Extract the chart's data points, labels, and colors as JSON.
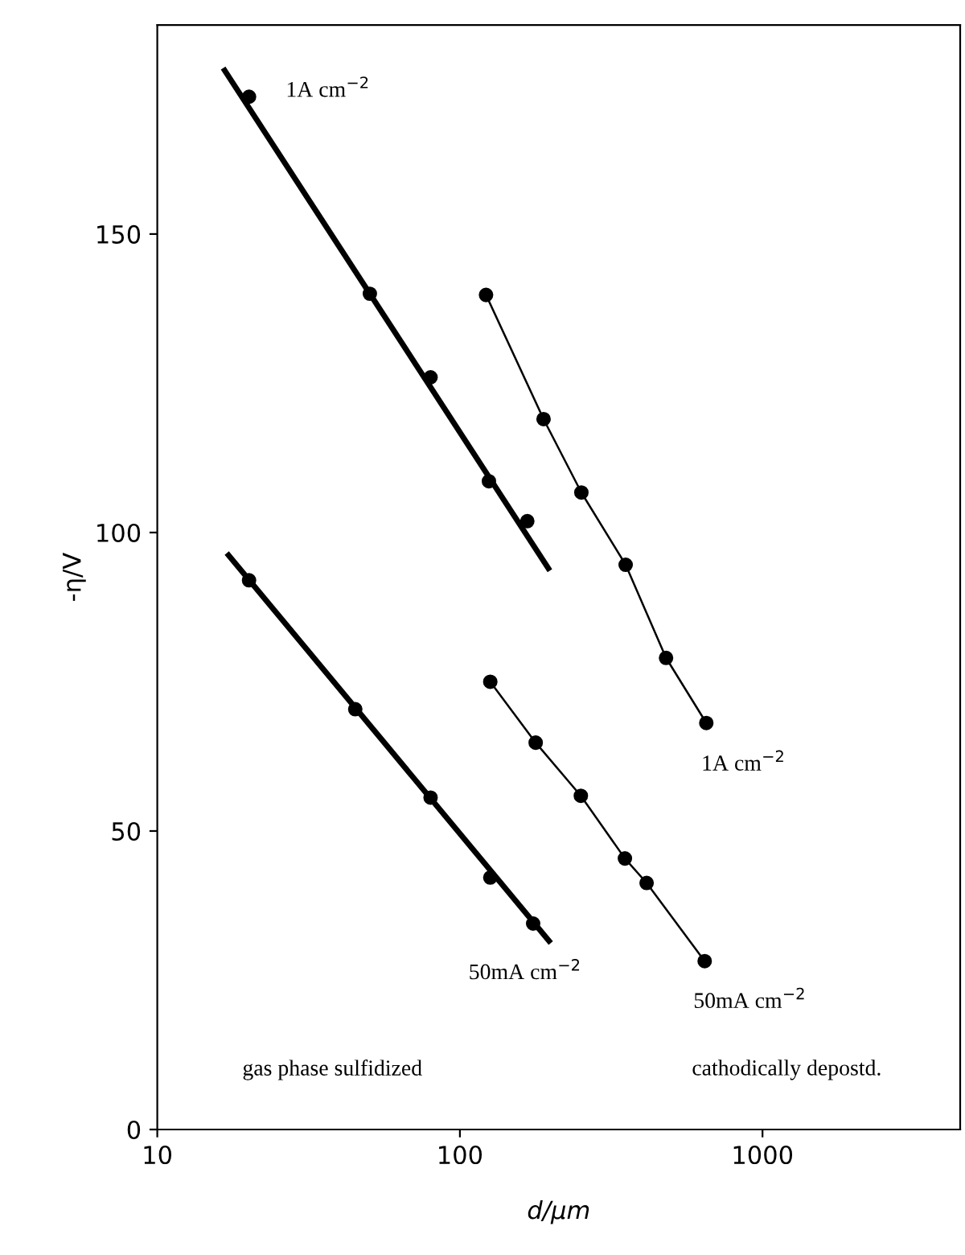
{
  "chart_data": {
    "type": "scatter",
    "xlabel": "d/μm",
    "ylabel": "-η/V",
    "log": "x",
    "xlim": [
      10,
      4500
    ],
    "xticks": [
      10,
      100,
      1000
    ],
    "ylim": [
      0,
      185
    ],
    "yticks": [
      0,
      50,
      100,
      150
    ],
    "grid": false,
    "series": [
      {
        "color": "#000000",
        "marker": "circle",
        "x": [
          20.1,
          50.4,
          80,
          124.7,
          167
        ],
        "values": [
          173,
          140,
          126,
          108.6,
          101.9
        ]
      },
      {
        "type": "line",
        "color": "#000000",
        "marker": "none",
        "x": [
          16.7,
          196
        ],
        "values": [
          177.4,
          94
        ]
      },
      {
        "type": "line",
        "color": "#000000",
        "marker": "circle",
        "x": [
          122,
          189,
          252,
          353,
          480,
          652
        ],
        "values": [
          139.8,
          119,
          106.7,
          94.6,
          79,
          68.1
        ]
      },
      {
        "color": "#000000",
        "marker": "circle",
        "x": [
          20.1,
          45.1,
          80,
          126,
          174.6
        ],
        "values": [
          92,
          70.4,
          55.6,
          42.2,
          34.5
        ]
      },
      {
        "type": "line",
        "color": "#000000",
        "marker": "none",
        "x": [
          17.2,
          197
        ],
        "values": [
          96.2,
          31.6
        ]
      },
      {
        "type": "line",
        "color": "#000000",
        "marker": "circle",
        "x": [
          126,
          178,
          251,
          351,
          414,
          644
        ],
        "values": [
          75,
          64.8,
          55.9,
          45.4,
          41.3,
          28.2
        ]
      }
    ],
    "annotations": [
      "1A cm$^{−2}$",
      "1A cm$^{−2}$",
      "50mA cm$^{−2}$",
      "50mA cm$^{−2}$",
      "gas phase sulfidized",
      "cathodically depostd."
    ]
  }
}
